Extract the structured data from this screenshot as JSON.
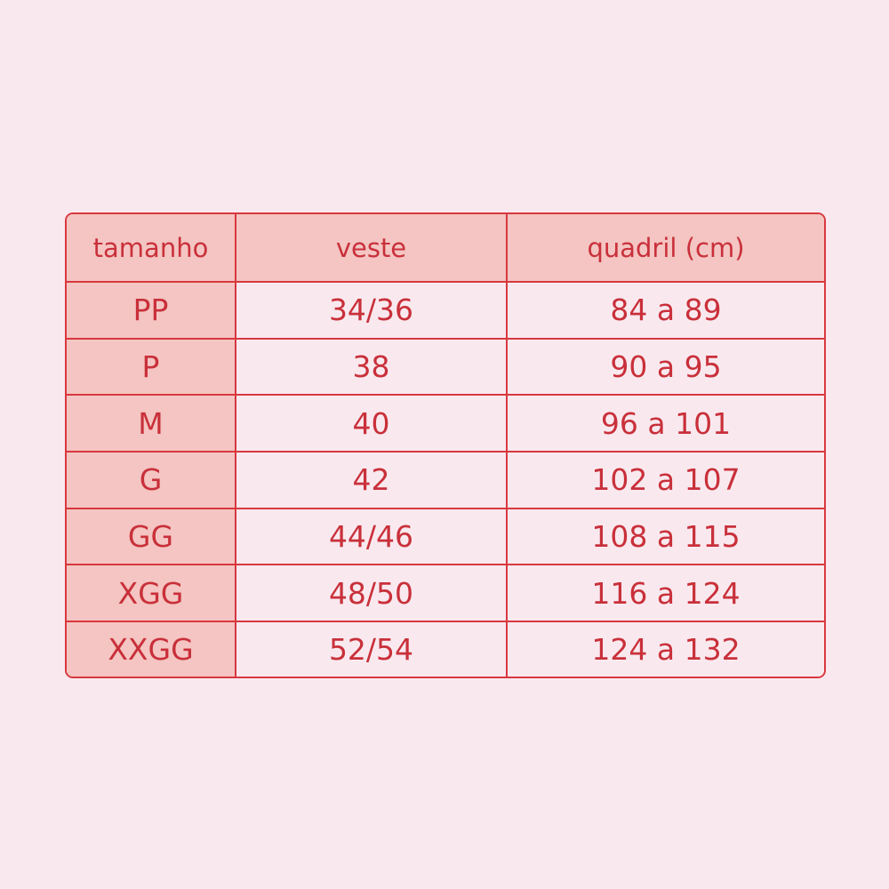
{
  "headers": [
    "tamanho",
    "veste",
    "quadril (cm)"
  ],
  "rows": [
    {
      "size": "PP",
      "veste": "34/36",
      "quadril": "84 a 89"
    },
    {
      "size": "P",
      "veste": "38",
      "quadril": "90 a 95"
    },
    {
      "size": "M",
      "veste": "40",
      "quadril": "96 a 101"
    },
    {
      "size": "G",
      "veste": "42",
      "quadril": "102 a 107"
    },
    {
      "size": "GG",
      "veste": "44/46",
      "quadril": "108 a 115"
    },
    {
      "size": "XGG",
      "veste": "48/50",
      "quadril": "116 a 124"
    },
    {
      "size": "XXGG",
      "veste": "52/54",
      "quadril": "124 a 132"
    }
  ],
  "colors": {
    "background": "#f9e9ef",
    "header_fill": "#f4c5c2",
    "border": "#d8383e",
    "text": "#c9303a"
  }
}
